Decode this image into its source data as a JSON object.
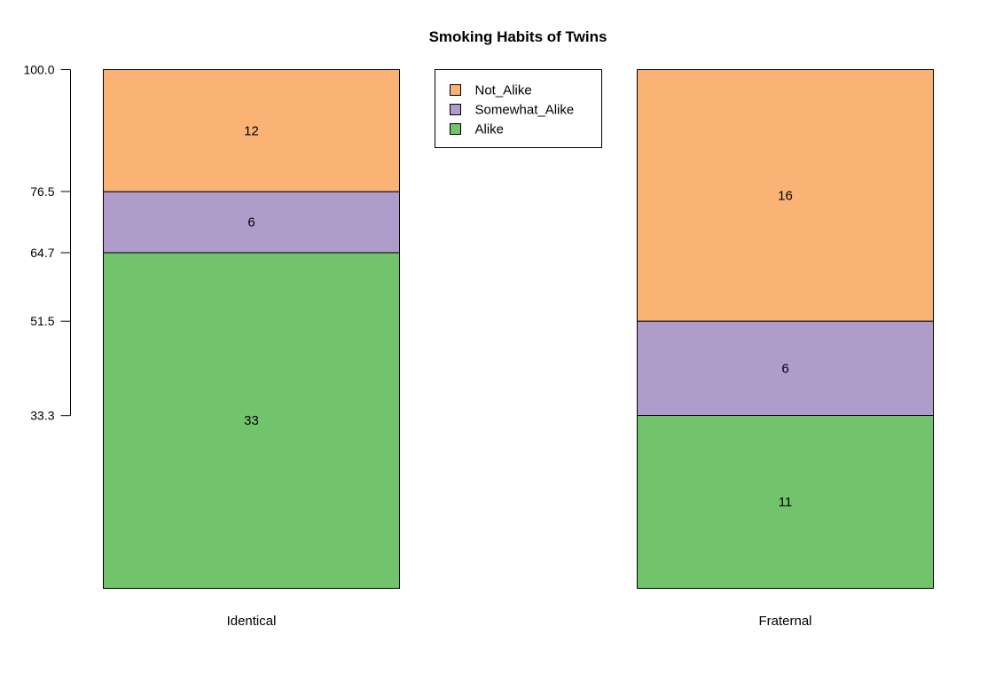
{
  "chart_data": {
    "type": "bar",
    "stacked": true,
    "normalized_percent": true,
    "title": "Smoking Habits of Twins",
    "xlabel": "",
    "ylabel": "",
    "ylim": [
      0,
      100
    ],
    "categories": [
      "Identical",
      "Fraternal"
    ],
    "series": [
      {
        "name": "Alike",
        "values": [
          33,
          11
        ],
        "color": "#71C36C"
      },
      {
        "name": "Somewhat_Alike",
        "values": [
          6,
          6
        ],
        "color": "#B09CCA"
      },
      {
        "name": "Not_Alike",
        "values": [
          12,
          16
        ],
        "color": "#FAB375"
      }
    ],
    "y_ticks": [
      {
        "value": 33.3,
        "label": "33.3"
      },
      {
        "value": 51.5,
        "label": "51.5"
      },
      {
        "value": 64.7,
        "label": "64.7"
      },
      {
        "value": 76.5,
        "label": "76.5"
      },
      {
        "value": 100.0,
        "label": "100.0"
      }
    ],
    "legend": {
      "placement": "top-center",
      "entries": [
        "Not_Alike",
        "Somewhat_Alike",
        "Alike"
      ]
    },
    "grid": false
  }
}
